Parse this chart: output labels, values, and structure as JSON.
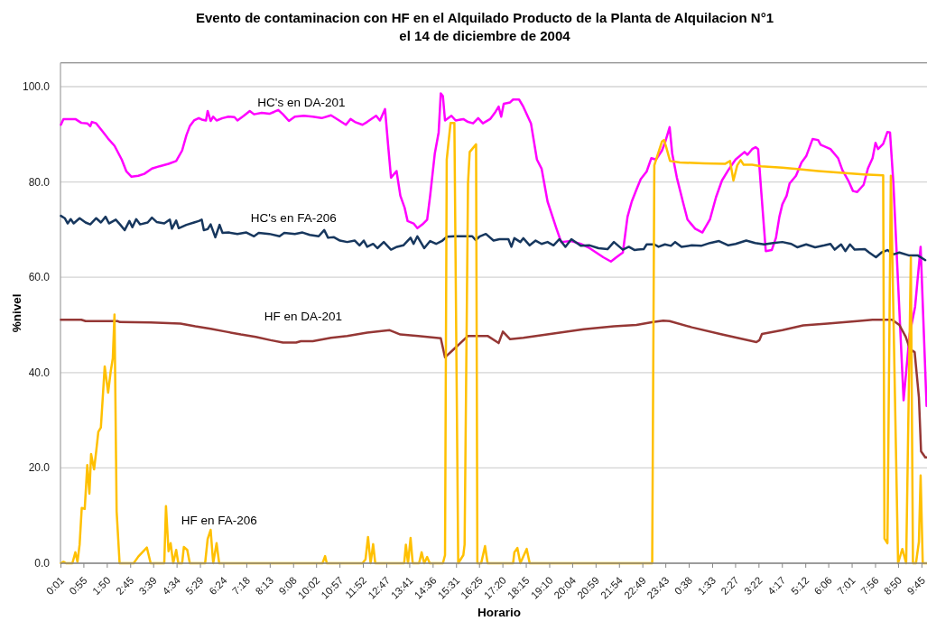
{
  "chart_data": {
    "type": "line",
    "title": "Evento de contaminacion con HF en el Alquilado Producto de la Planta de Alquilacion N°1\nel 14 de diciembre de 2004",
    "xlabel": "Horario",
    "ylabel": "%nivel",
    "xlim": [
      "2004-12-14T00:00",
      "2004-12-15T09:57"
    ],
    "ylim": [
      0,
      105
    ],
    "xticks": [
      {
        "value": "2004-12-14T00:01",
        "label": "0:01"
      },
      {
        "value": "2004-12-14T00:55",
        "label": "0:55"
      },
      {
        "value": "2004-12-14T01:50",
        "label": "1:50"
      },
      {
        "value": "2004-12-14T02:45",
        "label": "2:45"
      },
      {
        "value": "2004-12-14T03:39",
        "label": "3:39"
      },
      {
        "value": "2004-12-14T04:34",
        "label": "4:34"
      },
      {
        "value": "2004-12-14T05:29",
        "label": "5:29"
      },
      {
        "value": "2004-12-14T06:24",
        "label": "6:24"
      },
      {
        "value": "2004-12-14T07:18",
        "label": "7:18"
      },
      {
        "value": "2004-12-14T08:13",
        "label": "8:13"
      },
      {
        "value": "2004-12-14T09:08",
        "label": "9:08"
      },
      {
        "value": "2004-12-14T10:02",
        "label": "10:02"
      },
      {
        "value": "2004-12-14T10:57",
        "label": "10:57"
      },
      {
        "value": "2004-12-14T11:52",
        "label": "11:52"
      },
      {
        "value": "2004-12-14T12:47",
        "label": "12:47"
      },
      {
        "value": "2004-12-14T13:41",
        "label": "13:41"
      },
      {
        "value": "2004-12-14T14:36",
        "label": "14:36"
      },
      {
        "value": "2004-12-14T15:31",
        "label": "15:31"
      },
      {
        "value": "2004-12-14T16:25",
        "label": "16:25"
      },
      {
        "value": "2004-12-14T17:20",
        "label": "17:20"
      },
      {
        "value": "2004-12-14T18:15",
        "label": "18:15"
      },
      {
        "value": "2004-12-14T19:10",
        "label": "19:10"
      },
      {
        "value": "2004-12-14T20:04",
        "label": "20:04"
      },
      {
        "value": "2004-12-14T20:59",
        "label": "20:59"
      },
      {
        "value": "2004-12-14T21:54",
        "label": "21:54"
      },
      {
        "value": "2004-12-14T22:49",
        "label": "22:49"
      },
      {
        "value": "2004-12-14T23:43",
        "label": "23:43"
      },
      {
        "value": "2004-12-15T00:38",
        "label": "0:38"
      },
      {
        "value": "2004-12-15T01:33",
        "label": "1:33"
      },
      {
        "value": "2004-12-15T02:27",
        "label": "2:27"
      },
      {
        "value": "2004-12-15T03:22",
        "label": "3:22"
      },
      {
        "value": "2004-12-15T04:17",
        "label": "4:17"
      },
      {
        "value": "2004-12-15T05:12",
        "label": "5:12"
      },
      {
        "value": "2004-12-15T06:06",
        "label": "6:06"
      },
      {
        "value": "2004-12-15T07:01",
        "label": "7:01"
      },
      {
        "value": "2004-12-15T07:56",
        "label": "7:56"
      },
      {
        "value": "2004-12-15T08:50",
        "label": "8:50"
      },
      {
        "value": "2004-12-15T09:45",
        "label": "9:45"
      }
    ],
    "yticks": [
      {
        "value": 0,
        "label": "0.0"
      },
      {
        "value": 20,
        "label": "20.0"
      },
      {
        "value": 40,
        "label": "40.0"
      },
      {
        "value": 60,
        "label": "60.0"
      },
      {
        "value": 80,
        "label": "80.0"
      },
      {
        "value": 100,
        "label": "100.0"
      }
    ],
    "grid": "y",
    "series": [
      {
        "name": "HC's en DA-201",
        "color": "#ff00ff",
        "x": [
          "2004-12-14T00:01",
          "2004-12-14T00:07",
          "2004-12-14T00:20",
          "2004-12-14T00:35",
          "2004-12-14T00:49",
          "2004-12-14T01:03",
          "2004-12-14T01:10",
          "2004-12-14T01:14",
          "2004-12-14T01:24",
          "2004-12-14T01:38",
          "2004-12-14T01:52",
          "2004-12-14T02:07",
          "2004-12-14T02:24",
          "2004-12-14T02:35",
          "2004-12-14T02:47",
          "2004-12-14T03:03",
          "2004-12-14T03:17",
          "2004-12-14T03:35",
          "2004-12-14T03:53",
          "2004-12-14T04:14",
          "2004-12-14T04:32",
          "2004-12-14T04:46",
          "2004-12-14T04:56",
          "2004-12-14T05:04",
          "2004-12-14T05:14",
          "2004-12-14T05:25",
          "2004-12-14T05:32",
          "2004-12-14T05:42",
          "2004-12-14T05:46",
          "2004-12-14T05:53",
          "2004-12-14T05:59",
          "2004-12-14T06:07",
          "2004-12-14T06:21",
          "2004-12-14T06:35",
          "2004-12-14T06:49",
          "2004-12-14T06:56",
          "2004-12-14T07:11",
          "2004-12-14T07:25",
          "2004-12-14T07:35",
          "2004-12-14T07:53",
          "2004-12-14T08:11",
          "2004-12-14T08:22",
          "2004-12-14T08:32",
          "2004-12-14T08:43",
          "2004-12-14T08:57",
          "2004-12-14T09:11",
          "2004-12-14T09:32",
          "2004-12-14T09:53",
          "2004-12-14T10:14",
          "2004-12-14T10:36",
          "2004-12-14T10:57",
          "2004-12-14T11:11",
          "2004-12-14T11:22",
          "2004-12-14T11:32",
          "2004-12-14T11:50",
          "2004-12-14T12:01",
          "2004-12-14T12:22",
          "2004-12-14T12:31",
          "2004-12-14T12:43",
          "2004-12-14T12:50",
          "2004-12-14T12:57",
          "2004-12-14T13:10",
          "2004-12-14T13:19",
          "2004-12-14T13:29",
          "2004-12-14T13:36",
          "2004-12-14T13:50",
          "2004-12-14T13:59",
          "2004-12-14T14:11",
          "2004-12-14T14:22",
          "2004-12-14T14:29",
          "2004-12-14T14:40",
          "2004-12-14T14:49",
          "2004-12-14T14:54",
          "2004-12-14T14:59",
          "2004-12-14T15:04",
          "2004-12-14T15:19",
          "2004-12-14T15:29",
          "2004-12-14T15:47",
          "2004-12-14T15:58",
          "2004-12-14T16:10",
          "2004-12-14T16:22",
          "2004-12-14T16:33",
          "2004-12-14T16:50",
          "2004-12-14T17:01",
          "2004-12-14T17:10",
          "2004-12-14T17:16",
          "2004-12-14T17:22",
          "2004-12-14T17:37",
          "2004-12-14T17:44",
          "2004-12-14T17:58",
          "2004-12-14T18:08",
          "2004-12-14T18:26",
          "2004-12-14T18:40",
          "2004-12-14T18:51",
          "2004-12-14T19:05",
          "2004-12-14T19:26",
          "2004-12-14T19:37",
          "2004-12-14T20:01",
          "2004-12-14T20:23",
          "2004-12-14T20:44",
          "2004-12-14T21:16",
          "2004-12-14T21:34",
          "2004-12-14T21:47",
          "2004-12-14T22:02",
          "2004-12-14T22:13",
          "2004-12-14T22:23",
          "2004-12-14T22:34",
          "2004-12-14T22:44",
          "2004-12-14T22:58",
          "2004-12-14T23:09",
          "2004-12-14T23:20",
          "2004-12-14T23:34",
          "2004-12-14T23:42",
          "2004-12-14T23:52",
          "2004-12-14T23:58",
          "2004-12-15T00:09",
          "2004-12-15T00:23",
          "2004-12-15T00:34",
          "2004-12-15T00:52",
          "2004-12-15T01:09",
          "2004-12-15T01:27",
          "2004-12-15T01:41",
          "2004-12-15T01:55",
          "2004-12-15T02:10",
          "2004-12-15T02:27",
          "2004-12-15T02:48",
          "2004-12-15T02:55",
          "2004-12-15T03:06",
          "2004-12-15T03:14",
          "2004-12-15T03:20",
          "2004-12-15T03:27",
          "2004-12-15T03:38",
          "2004-12-15T03:52",
          "2004-12-15T04:02",
          "2004-12-15T04:10",
          "2004-12-15T04:17",
          "2004-12-15T04:27",
          "2004-12-15T04:34",
          "2004-12-15T04:49",
          "2004-12-15T05:02",
          "2004-12-15T05:13",
          "2004-12-15T05:28",
          "2004-12-15T05:41",
          "2004-12-15T05:47",
          "2004-12-15T06:10",
          "2004-12-15T06:28",
          "2004-12-15T06:38",
          "2004-12-15T06:52",
          "2004-12-15T07:03",
          "2004-12-15T07:13",
          "2004-12-15T07:28",
          "2004-12-15T07:38",
          "2004-12-15T07:49",
          "2004-12-15T07:56",
          "2004-12-15T08:02",
          "2004-12-15T08:14",
          "2004-12-15T08:24",
          "2004-12-15T08:30",
          "2004-12-15T08:38",
          "2004-12-15T09:02",
          "2004-12-15T09:16",
          "2004-12-15T09:29",
          "2004-12-15T09:42",
          "2004-12-15T09:56"
        ],
        "values": [
          92.0,
          93.2,
          93.2,
          93.2,
          92.4,
          92.3,
          91.7,
          92.6,
          92.3,
          90.7,
          89.1,
          87.6,
          84.7,
          82.2,
          81.1,
          81.3,
          81.7,
          82.8,
          83.3,
          83.8,
          84.4,
          86.6,
          89.8,
          91.7,
          92.9,
          93.4,
          93.1,
          92.9,
          94.9,
          92.8,
          93.7,
          92.9,
          93.4,
          93.7,
          93.6,
          92.9,
          93.9,
          94.9,
          94.2,
          94.5,
          94.3,
          94.7,
          95.1,
          94.2,
          92.8,
          93.7,
          93.9,
          93.7,
          93.4,
          94.0,
          92.8,
          92.0,
          93.2,
          92.6,
          92.0,
          92.6,
          93.9,
          92.9,
          95.3,
          87.9,
          80.9,
          82.3,
          77.1,
          74.6,
          71.8,
          71.3,
          70.3,
          71.1,
          72.1,
          77.1,
          86.0,
          90.4,
          98.6,
          98.0,
          92.9,
          93.9,
          92.9,
          93.2,
          92.6,
          92.3,
          93.4,
          92.3,
          93.2,
          94.5,
          95.8,
          93.7,
          96.4,
          96.7,
          97.3,
          97.3,
          95.8,
          92.3,
          84.7,
          82.8,
          75.9,
          70.2,
          67.4,
          67.6,
          67.0,
          66.1,
          64.2,
          63.3,
          64.2,
          65.2,
          72.7,
          75.9,
          78.4,
          80.6,
          82.2,
          85.0,
          84.7,
          86.6,
          88.5,
          91.5,
          86.0,
          80.9,
          75.9,
          72.1,
          70.2,
          69.4,
          72.2,
          76.8,
          80.3,
          82.5,
          84.7,
          86.3,
          85.7,
          86.9,
          87.3,
          86.9,
          78.4,
          65.5,
          65.7,
          68.3,
          72.7,
          75.3,
          77.1,
          79.7,
          81.3,
          84.1,
          85.4,
          89.0,
          88.8,
          87.8,
          86.9,
          85.0,
          82.5,
          80.3,
          78.1,
          77.9,
          79.4,
          82.8,
          85.0,
          88.2,
          86.9,
          88.0,
          90.5,
          90.4,
          79.7,
          34.2,
          48.0,
          53.8,
          66.4,
          33.0
        ]
      },
      {
        "name": "HC's en FA-206",
        "color": "#17375e",
        "x": [
          "2004-12-14T00:01",
          "2004-12-14T00:10",
          "2004-12-14T00:17",
          "2004-12-14T00:24",
          "2004-12-14T00:31",
          "2004-12-14T00:45",
          "2004-12-14T00:59",
          "2004-12-14T01:10",
          "2004-12-14T01:24",
          "2004-12-14T01:35",
          "2004-12-14T01:46",
          "2004-12-14T01:54",
          "2004-12-14T02:10",
          "2004-12-14T02:20",
          "2004-12-14T02:31",
          "2004-12-14T02:42",
          "2004-12-14T02:49",
          "2004-12-14T02:58",
          "2004-12-14T03:07",
          "2004-12-14T03:25",
          "2004-12-14T03:35",
          "2004-12-14T03:46",
          "2004-12-14T04:04",
          "2004-12-14T04:17",
          "2004-12-14T04:22",
          "2004-12-14T04:32",
          "2004-12-14T04:38",
          "2004-12-14T04:56",
          "2004-12-14T05:14",
          "2004-12-14T05:25",
          "2004-12-14T05:32",
          "2004-12-14T05:37",
          "2004-12-14T05:46",
          "2004-12-14T05:53",
          "2004-12-14T06:04",
          "2004-12-14T06:14",
          "2004-12-14T06:21",
          "2004-12-14T06:35",
          "2004-12-14T06:56",
          "2004-12-14T07:17",
          "2004-12-14T07:35",
          "2004-12-14T07:46",
          "2004-12-14T08:11",
          "2004-12-14T08:35",
          "2004-12-14T08:46",
          "2004-12-14T09:11",
          "2004-12-14T09:29",
          "2004-12-14T09:46",
          "2004-12-14T10:07",
          "2004-12-14T10:20",
          "2004-12-14T10:29",
          "2004-12-14T10:43",
          "2004-12-14T10:57",
          "2004-12-14T11:14",
          "2004-12-14T11:32",
          "2004-12-14T11:43",
          "2004-12-14T11:53",
          "2004-12-14T12:01",
          "2004-12-14T12:15",
          "2004-12-14T12:25",
          "2004-12-14T12:40",
          "2004-12-14T12:57",
          "2004-12-14T13:11",
          "2004-12-14T13:26",
          "2004-12-14T13:43",
          "2004-12-14T13:50",
          "2004-12-14T13:59",
          "2004-12-14T14:15",
          "2004-12-14T14:29",
          "2004-12-14T14:43",
          "2004-12-14T14:58",
          "2004-12-14T15:08",
          "2004-12-14T15:26",
          "2004-12-14T15:47",
          "2004-12-14T16:08",
          "2004-12-14T16:16",
          "2004-12-14T16:26",
          "2004-12-14T16:40",
          "2004-12-14T16:58",
          "2004-12-14T17:12",
          "2004-12-14T17:33",
          "2004-12-14T17:40",
          "2004-12-14T17:47",
          "2004-12-14T18:01",
          "2004-12-14T18:08",
          "2004-12-14T18:23",
          "2004-12-14T18:37",
          "2004-12-14T18:51",
          "2004-12-14T19:05",
          "2004-12-14T19:19",
          "2004-12-14T19:33",
          "2004-12-14T19:47",
          "2004-12-14T20:01",
          "2004-12-14T20:23",
          "2004-12-14T20:44",
          "2004-12-14T21:05",
          "2004-12-14T21:26",
          "2004-12-14T21:41",
          "2004-12-14T22:02",
          "2004-12-14T22:16",
          "2004-12-14T22:30",
          "2004-12-14T22:37",
          "2004-12-14T22:51",
          "2004-12-14T22:58",
          "2004-12-14T23:16",
          "2004-12-14T23:26",
          "2004-12-14T23:41",
          "2004-12-14T23:55",
          "2004-12-15T00:05",
          "2004-12-15T00:20",
          "2004-12-15T00:44",
          "2004-12-15T01:06",
          "2004-12-15T01:27",
          "2004-12-15T01:48",
          "2004-12-15T02:10",
          "2004-12-15T02:27",
          "2004-12-15T02:52",
          "2004-12-15T03:13",
          "2004-12-15T03:34",
          "2004-12-15T03:55",
          "2004-12-15T04:17",
          "2004-12-15T04:38",
          "2004-12-15T04:52",
          "2004-12-15T05:13",
          "2004-12-15T05:34",
          "2004-12-15T05:56",
          "2004-12-15T06:10",
          "2004-12-15T06:20",
          "2004-12-15T06:35",
          "2004-12-15T06:45",
          "2004-12-15T06:56",
          "2004-12-15T07:07",
          "2004-12-15T07:31",
          "2004-12-15T07:41",
          "2004-12-15T07:57",
          "2004-12-15T08:10",
          "2004-12-15T08:24",
          "2004-12-15T08:38",
          "2004-12-15T08:52",
          "2004-12-15T09:14",
          "2004-12-15T09:35",
          "2004-12-15T09:53"
        ],
        "values": [
          72.9,
          72.4,
          71.3,
          72.2,
          71.3,
          72.4,
          71.5,
          71.1,
          72.4,
          71.5,
          72.7,
          71.3,
          72.1,
          71.1,
          69.9,
          71.8,
          70.5,
          72.2,
          71.1,
          71.5,
          72.5,
          71.6,
          71.3,
          72.1,
          70.2,
          71.9,
          70.3,
          71.0,
          71.5,
          71.8,
          72.1,
          69.9,
          70.1,
          71.1,
          68.4,
          71.0,
          69.3,
          69.4,
          69.1,
          69.4,
          68.6,
          69.3,
          69.1,
          68.6,
          69.3,
          69.1,
          69.4,
          68.9,
          68.6,
          69.9,
          68.3,
          68.4,
          67.7,
          67.4,
          67.7,
          66.7,
          67.7,
          66.4,
          67.0,
          66.1,
          67.4,
          65.8,
          66.4,
          66.7,
          68.3,
          67.0,
          68.6,
          66.1,
          67.6,
          67.0,
          67.7,
          68.5,
          68.6,
          68.6,
          68.6,
          67.8,
          68.6,
          69.1,
          67.7,
          68.0,
          68.0,
          66.4,
          68.2,
          67.4,
          68.2,
          66.7,
          67.7,
          67.0,
          67.4,
          66.7,
          68.0,
          66.4,
          68.0,
          66.6,
          66.7,
          66.1,
          65.9,
          67.4,
          65.8,
          66.4,
          65.7,
          65.8,
          65.9,
          66.9,
          66.9,
          66.4,
          66.9,
          66.6,
          67.4,
          66.4,
          66.7,
          66.6,
          67.2,
          67.6,
          66.7,
          67.0,
          67.7,
          67.2,
          66.9,
          67.2,
          67.4,
          67.0,
          66.3,
          66.9,
          66.3,
          66.7,
          67.0,
          65.8,
          66.9,
          65.5,
          66.9,
          65.8,
          65.9,
          65.2,
          64.2,
          65.2,
          65.7,
          64.8,
          65.2,
          64.6,
          64.6,
          63.6
        ]
      },
      {
        "name": "HF en DA-201",
        "color": "#953735",
        "x": [
          "2004-12-14T00:01",
          "2004-12-14T00:49",
          "2004-12-14T00:59",
          "2004-12-14T02:14",
          "2004-12-14T02:20",
          "2004-12-14T03:32",
          "2004-12-14T04:42",
          "2004-12-14T05:17",
          "2004-12-14T05:53",
          "2004-12-14T06:28",
          "2004-12-14T07:04",
          "2004-12-14T07:39",
          "2004-12-14T08:14",
          "2004-12-14T08:43",
          "2004-12-14T09:14",
          "2004-12-14T09:25",
          "2004-12-14T09:53",
          "2004-12-14T10:36",
          "2004-12-14T11:14",
          "2004-12-14T12:01",
          "2004-12-14T12:54",
          "2004-12-14T13:19",
          "2004-12-14T14:01",
          "2004-12-14T14:54",
          "2004-12-14T15:04",
          "2004-12-14T15:33",
          "2004-12-14T15:58",
          "2004-12-14T16:44",
          "2004-12-14T17:10",
          "2004-12-14T17:20",
          "2004-12-14T17:37",
          "2004-12-14T18:08",
          "2004-12-14T19:19",
          "2004-12-14T20:30",
          "2004-12-14T21:41",
          "2004-12-14T22:34",
          "2004-12-14T23:13",
          "2004-12-14T23:37",
          "2004-12-14T23:52",
          "2004-12-15T00:44",
          "2004-12-15T01:55",
          "2004-12-15T03:16",
          "2004-12-15T03:23",
          "2004-12-15T03:29",
          "2004-12-15T04:17",
          "2004-12-15T05:06",
          "2004-12-15T06:03",
          "2004-12-15T07:13",
          "2004-12-15T07:49",
          "2004-12-15T08:35",
          "2004-12-15T08:52",
          "2004-12-15T09:07",
          "2004-12-15T09:17",
          "2004-12-15T09:28",
          "2004-12-15T09:38",
          "2004-12-15T09:43",
          "2004-12-15T09:53",
          "2004-12-15T09:56"
        ],
        "values": [
          51.1,
          51.1,
          50.8,
          50.8,
          50.6,
          50.5,
          50.3,
          49.7,
          49.2,
          48.6,
          48.0,
          47.5,
          46.8,
          46.3,
          46.3,
          46.6,
          46.6,
          47.3,
          47.7,
          48.4,
          48.9,
          48.0,
          47.7,
          47.2,
          43.2,
          45.6,
          47.7,
          47.7,
          46.2,
          48.6,
          47.0,
          47.3,
          48.2,
          49.1,
          49.7,
          50.0,
          50.6,
          50.9,
          50.8,
          49.5,
          48.0,
          46.4,
          46.8,
          48.1,
          48.9,
          49.9,
          50.3,
          50.8,
          51.1,
          51.1,
          50.0,
          47.5,
          44.9,
          44.3,
          34.8,
          23.5,
          22.2,
          22.2
        ]
      },
      {
        "name": "HF en FA-206",
        "color": "#ffc000",
        "x": [
          "2004-12-14T00:01",
          "2004-12-14T00:07",
          "2004-12-14T00:13",
          "2004-12-14T00:28",
          "2004-12-14T00:35",
          "2004-12-14T00:40",
          "2004-12-14T00:45",
          "2004-12-14T00:50",
          "2004-12-14T00:57",
          "2004-12-14T01:03",
          "2004-12-14T01:08",
          "2004-12-14T01:12",
          "2004-12-14T01:19",
          "2004-12-14T01:24",
          "2004-12-14T01:29",
          "2004-12-14T01:35",
          "2004-12-14T01:44",
          "2004-12-14T01:52",
          "2004-12-14T01:58",
          "2004-12-14T02:03",
          "2004-12-14T02:07",
          "2004-12-14T02:12",
          "2004-12-14T02:19",
          "2004-12-14T02:52",
          "2004-12-14T03:03",
          "2004-12-14T03:23",
          "2004-12-14T03:32",
          "2004-12-14T04:04",
          "2004-12-14T04:08",
          "2004-12-14T04:14",
          "2004-12-14T04:19",
          "2004-12-14T04:25",
          "2004-12-14T04:32",
          "2004-12-14T04:37",
          "2004-12-14T04:46",
          "2004-12-14T04:50",
          "2004-12-14T04:58",
          "2004-12-14T05:04",
          "2004-12-14T05:40",
          "2004-12-14T05:46",
          "2004-12-14T05:53",
          "2004-12-14T05:59",
          "2004-12-14T06:07",
          "2004-12-14T06:13",
          "2004-12-14T10:16",
          "2004-12-14T10:22",
          "2004-12-14T10:26",
          "2004-12-14T11:50",
          "2004-12-14T11:57",
          "2004-12-14T12:03",
          "2004-12-14T12:09",
          "2004-12-14T12:15",
          "2004-12-14T12:20",
          "2004-12-14T13:28",
          "2004-12-14T13:32",
          "2004-12-14T13:37",
          "2004-12-14T13:43",
          "2004-12-14T13:48",
          "2004-12-14T14:03",
          "2004-12-14T14:09",
          "2004-12-14T14:15",
          "2004-12-14T14:22",
          "2004-12-14T14:28",
          "2004-12-14T14:59",
          "2004-12-14T15:04",
          "2004-12-14T15:08",
          "2004-12-14T15:17",
          "2004-12-14T15:26",
          "2004-12-14T15:35",
          "2004-12-14T15:47",
          "2004-12-14T15:50",
          "2004-12-14T15:58",
          "2004-12-14T16:02",
          "2004-12-14T16:17",
          "2004-12-14T16:20",
          "2004-12-14T16:29",
          "2004-12-14T16:38",
          "2004-12-14T16:44",
          "2004-12-14T17:44",
          "2004-12-14T17:47",
          "2004-12-14T17:54",
          "2004-12-14T18:01",
          "2004-12-14T18:16",
          "2004-12-14T18:23",
          "2004-12-14T23:11",
          "2004-12-14T23:16",
          "2004-12-14T23:34",
          "2004-12-14T23:39",
          "2004-12-14T23:44",
          "2004-12-14T23:53",
          "2004-12-15T00:16",
          "2004-12-15T01:13",
          "2004-12-15T02:02",
          "2004-12-15T02:14",
          "2004-12-15T02:22",
          "2004-12-15T02:31",
          "2004-12-15T02:39",
          "2004-12-15T02:46",
          "2004-12-15T03:06",
          "2004-12-15T03:27",
          "2004-12-15T04:17",
          "2004-12-15T04:52",
          "2004-12-15T05:41",
          "2004-12-15T06:38",
          "2004-12-15T07:28",
          "2004-12-15T08:14",
          "2004-12-15T08:17",
          "2004-12-15T08:24",
          "2004-12-15T08:32",
          "2004-12-15T08:49",
          "2004-12-15T08:59",
          "2004-12-15T09:08",
          "2004-12-15T09:19",
          "2004-12-15T09:24",
          "2004-12-15T09:31",
          "2004-12-15T09:38",
          "2004-12-15T09:42",
          "2004-12-15T09:47",
          "2004-12-15T09:56"
        ],
        "values": [
          0,
          0.3,
          0,
          0,
          2.3,
          0.3,
          3.9,
          11.6,
          11.4,
          20.6,
          14.6,
          22.9,
          19.7,
          23.5,
          27.6,
          28.5,
          41.3,
          35.8,
          40.2,
          43.0,
          52.2,
          10.9,
          0,
          0,
          1.4,
          3.3,
          0,
          0,
          12.0,
          2.5,
          4.2,
          0,
          2.8,
          0,
          0,
          3.4,
          2.8,
          0,
          0,
          5.1,
          7.0,
          0,
          4.2,
          0,
          0,
          1.5,
          0,
          0,
          0.8,
          5.5,
          0,
          4.0,
          0,
          0,
          3.9,
          0,
          5.3,
          0,
          0,
          2.3,
          0,
          1.3,
          0,
          0,
          1.7,
          84.7,
          92.4,
          92.4,
          0,
          1.7,
          3.9,
          79.7,
          86.3,
          87.9,
          0,
          0,
          3.6,
          0,
          0,
          2.3,
          3.2,
          0,
          3.0,
          0,
          0,
          83.5,
          88.5,
          88.8,
          87.3,
          84.4,
          84.1,
          83.9,
          83.8,
          84.4,
          80.3,
          83.5,
          84.6,
          83.6,
          83.6,
          83.3,
          83.0,
          82.7,
          82.3,
          81.9,
          81.6,
          81.4,
          5.2,
          4.2,
          81.3,
          0,
          3.0,
          0,
          64.2,
          0,
          0,
          4.5,
          18.4,
          0,
          0
        ]
      }
    ]
  }
}
